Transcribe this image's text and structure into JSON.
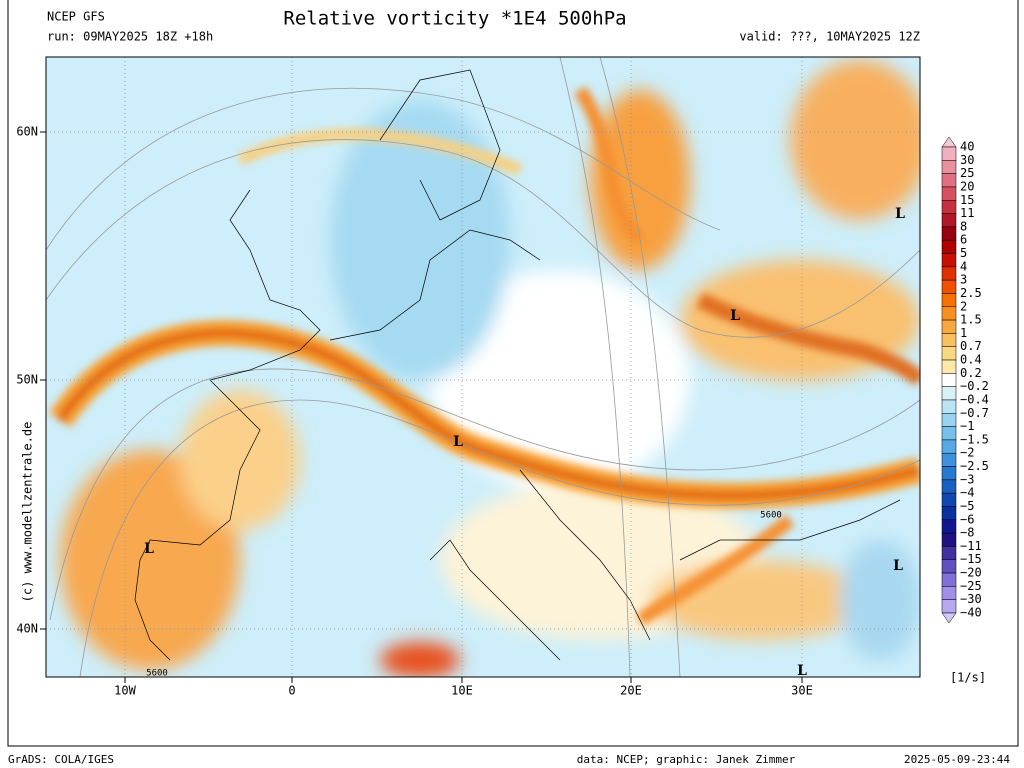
{
  "header": {
    "model": "NCEP GFS",
    "run": "run: 09MAY2025 18Z +18h",
    "title": "Relative vorticity *1E4 500hPa",
    "valid": "valid: ???, 10MAY2025 12Z"
  },
  "map": {
    "lat_labels": [
      "60N",
      "50N",
      "40N"
    ],
    "lon_labels": [
      "10W",
      "0",
      "10E",
      "20E",
      "30E"
    ],
    "lows": [
      "L",
      "L",
      "L",
      "L",
      "L",
      "L"
    ],
    "contour_labels": [
      "5600",
      "5600"
    ]
  },
  "side_text": "(c) www.modellzentrale.de",
  "colorbar": {
    "labels": [
      "40",
      "30",
      "25",
      "20",
      "15",
      "11",
      "8",
      "6",
      "5",
      "4",
      "3",
      "2.5",
      "2",
      "1.5",
      "1",
      "0.7",
      "0.4",
      "0.2",
      "−0.2",
      "−0.4",
      "−0.7",
      "−1",
      "−1.5",
      "−2",
      "−2.5",
      "−3",
      "−4",
      "−5",
      "−6",
      "−8",
      "−11",
      "−15",
      "−20",
      "−25",
      "−30",
      "−40"
    ],
    "colors": [
      "#f5c8d8",
      "#f0b0c0",
      "#e890a0",
      "#e07080",
      "#d85060",
      "#c83040",
      "#b01828",
      "#980010",
      "#b00000",
      "#c81000",
      "#e03000",
      "#f05000",
      "#f87000",
      "#f89020",
      "#f8a840",
      "#f8c060",
      "#f8d880",
      "#fce8a8",
      "#ffffff",
      "#d8f0f8",
      "#b8e4f4",
      "#98d4f0",
      "#78c0ec",
      "#58a8e4",
      "#4090dc",
      "#2878d0",
      "#1860c0",
      "#1048b0",
      "#0830a0",
      "#101890",
      "#201080",
      "#4030a0",
      "#6050c0",
      "#8070d8",
      "#a090e8",
      "#b8a8f0",
      "#d0c8f8"
    ],
    "units": "[1/s]"
  },
  "footer": {
    "left": "GrADS: COLA/IGES",
    "center": "data: NCEP; graphic: Janek Zimmer",
    "right": "2025-05-09-23:44"
  }
}
